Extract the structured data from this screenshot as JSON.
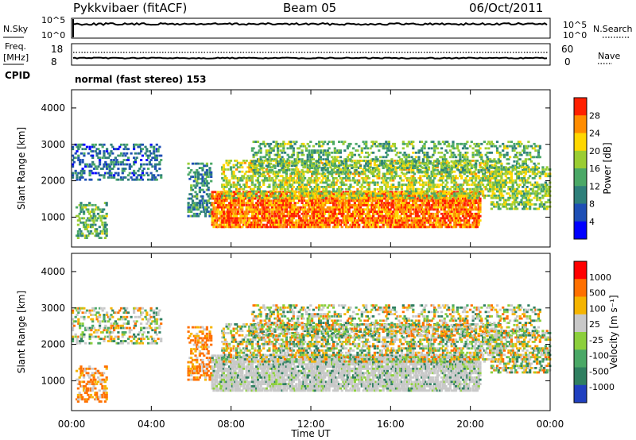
{
  "header": {
    "station": "Pykkvibaer (fitACF)",
    "beam": "Beam 05",
    "date": "06/Oct/2011"
  },
  "sky_panel": {
    "left_label": "N.Sky",
    "left_ticks": [
      "10^5",
      "10^0"
    ],
    "right_label": "N.Search",
    "right_ticks": [
      "10^5",
      "10^0"
    ]
  },
  "freq_panel": {
    "left_label_line1": "Freq.",
    "left_label_line2": "[MHz]",
    "left_ticks": [
      "18",
      "8"
    ],
    "right_label": "Nave",
    "right_ticks": [
      "60",
      "0"
    ]
  },
  "cpid": {
    "label": "CPID",
    "value": "normal (fast stereo) 153"
  },
  "chart_data": [
    {
      "type": "heatmap",
      "quantity": "Power",
      "ylabel": "Slant Range [km]",
      "ylim": [
        180,
        4500
      ],
      "yticks": [
        "1000",
        "2000",
        "3000",
        "4000"
      ],
      "xlim_hours": [
        0,
        24
      ],
      "colorbar": {
        "label": "Power [dB]",
        "ticks": [
          "28",
          "24",
          "20",
          "16",
          "12",
          "8",
          "4"
        ],
        "range": [
          0,
          30
        ],
        "colors": [
          "#0000ff",
          "#1e4fb5",
          "#2e7f7a",
          "#4aa866",
          "#9acd32",
          "#ffd700",
          "#ff8c00",
          "#ff2000"
        ]
      }
    },
    {
      "type": "heatmap",
      "quantity": "Velocity",
      "ylabel": "Slant Range [km]",
      "ylim": [
        180,
        4500
      ],
      "yticks": [
        "1000",
        "2000",
        "3000",
        "4000"
      ],
      "xlim_hours": [
        0,
        24
      ],
      "colorbar": {
        "label": "Velocity [m s⁻¹]",
        "ticks": [
          "1000",
          "500",
          "100",
          "25",
          "-25",
          "-100",
          "-500",
          "-1000"
        ],
        "colors": [
          "#2040c0",
          "#2f7f60",
          "#4aa866",
          "#8ccf3c",
          "#c8c8c8",
          "#f5b400",
          "#ff7000",
          "#ff0000"
        ]
      }
    }
  ],
  "xaxis": {
    "label": "Time UT",
    "ticks": [
      "00:00",
      "04:00",
      "08:00",
      "12:00",
      "16:00",
      "20:00",
      "00:00"
    ]
  }
}
